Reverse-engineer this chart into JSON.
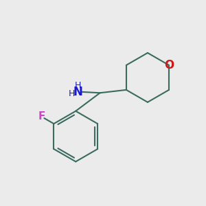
{
  "bg_color": "#ebebeb",
  "bond_color": "#3a6b5e",
  "N_color": "#1a1acc",
  "O_color": "#cc1a1a",
  "F_color": "#cc44cc",
  "bond_width": 1.5,
  "fig_size": [
    3.0,
    3.0
  ],
  "dpi": 100,
  "xlim": [
    0,
    10
  ],
  "ylim": [
    0,
    10
  ]
}
